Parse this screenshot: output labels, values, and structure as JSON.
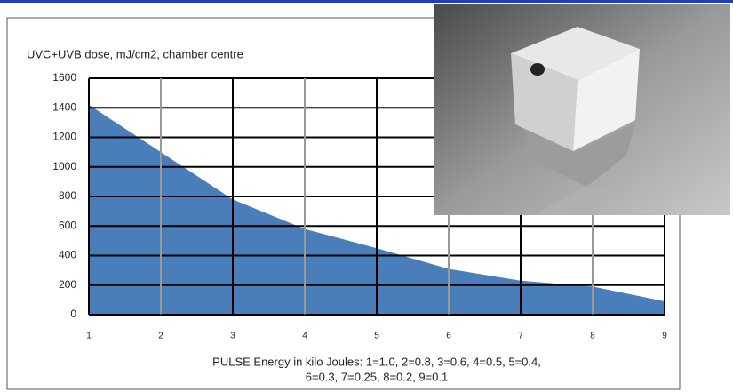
{
  "chart_data": {
    "type": "area",
    "title": "UVC+UVB dose, mJ/cm2, chamber centre",
    "xlabel": [
      "PULSE Energy in kilo Joules: 1=1.0, 2=0.8, 3=0.6, 4=0.5, 5=0.4,",
      "6=0.3, 7=0.25, 8=0.2, 9=0.1"
    ],
    "x": [
      1,
      2,
      3,
      4,
      5,
      6,
      7,
      8,
      9
    ],
    "values": [
      1420,
      1100,
      780,
      580,
      450,
      310,
      230,
      190,
      90
    ],
    "color": "#4a7ebb",
    "xlim": [
      1,
      9
    ],
    "xticks": [
      1,
      2,
      3,
      4,
      5,
      6,
      7,
      8,
      9
    ],
    "ylim": [
      0,
      1600
    ],
    "yticks": [
      0,
      200,
      400,
      600,
      800,
      1000,
      1200,
      1400,
      1600
    ],
    "grid": true
  }
}
